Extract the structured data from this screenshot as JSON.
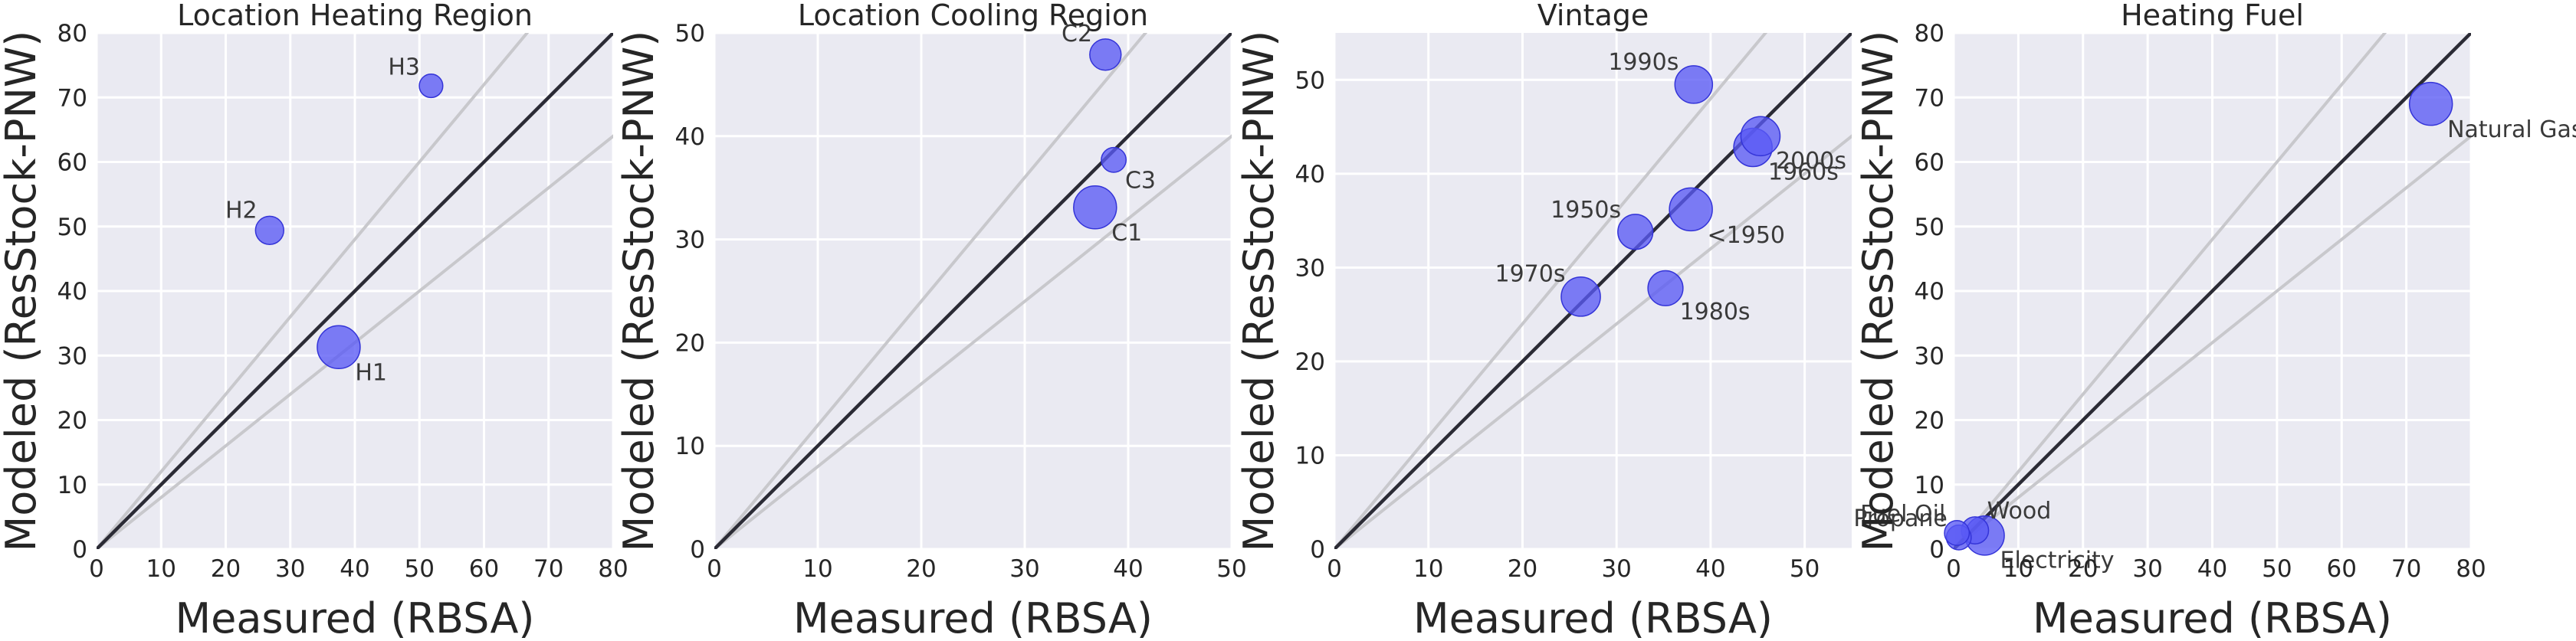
{
  "chart_data": [
    {
      "type": "scatter",
      "title": "Location Heating Region",
      "xlabel": "Measured (RBSA)",
      "ylabel": "Modeled (ResStock-PNW)",
      "xlim": [
        0,
        80
      ],
      "ylim": [
        0,
        80
      ],
      "xticks": [
        0,
        10,
        20,
        30,
        40,
        50,
        60,
        70,
        80
      ],
      "yticks": [
        0,
        10,
        20,
        30,
        40,
        50,
        60,
        70,
        80
      ],
      "grid": true,
      "reference_lines": [
        "y = x",
        "y = 1.2x",
        "y = 0.8x"
      ],
      "points": [
        {
          "label": "H1",
          "x": 37.5,
          "y": 31.3,
          "size": 3.0,
          "label_pos": "lower-right"
        },
        {
          "label": "H2",
          "x": 26.8,
          "y": 49.4,
          "size": 1.3,
          "label_pos": "upper-left"
        },
        {
          "label": "H3",
          "x": 51.8,
          "y": 71.8,
          "size": 0.9,
          "label_pos": "upper-left"
        }
      ]
    },
    {
      "type": "scatter",
      "title": "Location Cooling Region",
      "xlabel": "Measured (RBSA)",
      "ylabel": "Modeled (ResStock-PNW)",
      "xlim": [
        0,
        50
      ],
      "ylim": [
        0,
        50
      ],
      "xticks": [
        0,
        10,
        20,
        30,
        40,
        50
      ],
      "yticks": [
        0,
        10,
        20,
        30,
        40,
        50
      ],
      "grid": true,
      "reference_lines": [
        "y = x",
        "y = 1.2x",
        "y = 0.8x"
      ],
      "points": [
        {
          "label": "C1",
          "x": 36.8,
          "y": 33.1,
          "size": 3.0,
          "label_pos": "lower-right"
        },
        {
          "label": "C2",
          "x": 37.8,
          "y": 47.9,
          "size": 1.6,
          "label_pos": "upper-left"
        },
        {
          "label": "C3",
          "x": 38.6,
          "y": 37.7,
          "size": 1.0,
          "label_pos": "lower-right"
        }
      ]
    },
    {
      "type": "scatter",
      "title": "Vintage",
      "xlabel": "Measured (RBSA)",
      "ylabel": "Modeled (ResStock-PNW)",
      "xlim": [
        0,
        55
      ],
      "ylim": [
        0,
        55
      ],
      "xticks": [
        0,
        10,
        20,
        30,
        40,
        50
      ],
      "yticks": [
        0,
        10,
        20,
        30,
        40,
        50
      ],
      "grid": true,
      "reference_lines": [
        "y = x",
        "y = 1.2x",
        "y = 0.8x"
      ],
      "points": [
        {
          "label": "<1950",
          "x": 37.9,
          "y": 36.2,
          "size": 3.0,
          "label_pos": "lower-right"
        },
        {
          "label": "1950s",
          "x": 32.0,
          "y": 33.8,
          "size": 2.0,
          "label_pos": "upper-left"
        },
        {
          "label": "1960s",
          "x": 44.5,
          "y": 42.8,
          "size": 2.4,
          "label_pos": "lower-right"
        },
        {
          "label": "1970s",
          "x": 26.2,
          "y": 26.9,
          "size": 2.5,
          "label_pos": "upper-left"
        },
        {
          "label": "1980s",
          "x": 35.2,
          "y": 27.8,
          "size": 2.0,
          "label_pos": "lower-right"
        },
        {
          "label": "1990s",
          "x": 38.2,
          "y": 49.5,
          "size": 2.3,
          "label_pos": "upper-left"
        },
        {
          "label": "2000s",
          "x": 45.3,
          "y": 44.0,
          "size": 2.5,
          "label_pos": "lower-right"
        }
      ]
    },
    {
      "type": "scatter",
      "title": "Heating Fuel",
      "xlabel": "Measured (RBSA)",
      "ylabel": "Modeled (ResStock-PNW)",
      "xlim": [
        0,
        80
      ],
      "ylim": [
        0,
        80
      ],
      "xticks": [
        0,
        10,
        20,
        30,
        40,
        50,
        60,
        70,
        80
      ],
      "yticks": [
        0,
        10,
        20,
        30,
        40,
        50,
        60,
        70,
        80
      ],
      "grid": true,
      "reference_lines": [
        "y = x",
        "y = 1.2x",
        "y = 0.8x"
      ],
      "points": [
        {
          "label": "Natural Gas",
          "x": 73.8,
          "y": 69.0,
          "size": 3.0,
          "label_pos": "lower-right"
        },
        {
          "label": "Electricity",
          "x": 4.8,
          "y": 2.1,
          "size": 2.5,
          "label_pos": "lower-right"
        },
        {
          "label": "Wood",
          "x": 3.3,
          "y": 2.9,
          "size": 1.2,
          "label_pos": "upper-right"
        },
        {
          "label": "Propane",
          "x": 0.8,
          "y": 1.8,
          "size": 1.0,
          "label_pos": "upper-left"
        },
        {
          "label": "Fuel Oil",
          "x": 0.5,
          "y": 2.5,
          "size": 1.0,
          "label_pos": "upper-left"
        }
      ]
    }
  ]
}
